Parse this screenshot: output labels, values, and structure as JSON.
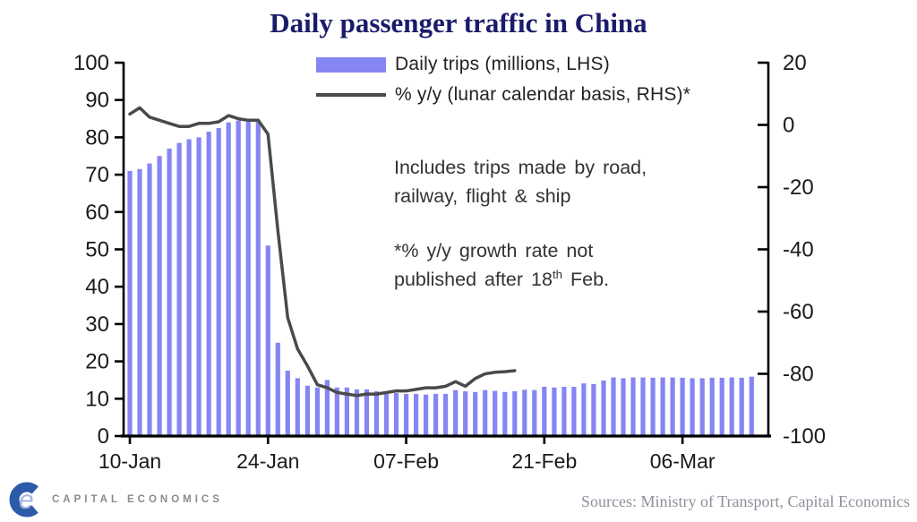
{
  "title": "Daily passenger traffic in China",
  "legend": {
    "bars_label": "Daily trips (millions, LHS)",
    "line_label": "% y/y (lunar calendar basis, RHS)*"
  },
  "annotations": {
    "note1_line1": "Includes trips made by road,",
    "note1_line2": "railway, flight & ship",
    "note2_line1": "*% y/y growth rate not",
    "note2_line2_pre": "published after 18",
    "note2_line2_sup": "th",
    "note2_line2_post": " Feb."
  },
  "footer": {
    "brand": "CAPITAL ECONOMICS",
    "sources": "Sources: Ministry of Transport, Capital Economics"
  },
  "colors": {
    "bar_fill": "#8585f3",
    "line_stroke": "#4a4a4a",
    "title_navy": "#1b1b6b",
    "axis_black": "#000000",
    "logo_blue": "#2b5aa8",
    "logo_e_blue": "#aab4e0",
    "brand_gray": "#8b8b8b",
    "sources_gray": "#8f8f9c"
  },
  "chart_data": {
    "type": "bar+line",
    "title": "Daily passenger traffic in China",
    "x_tick_labels": [
      "10-Jan",
      "24-Jan",
      "07-Feb",
      "21-Feb",
      "06-Mar"
    ],
    "x_tick_indices": [
      0,
      14,
      28,
      42,
      56
    ],
    "left_axis": {
      "label": "Daily trips (millions)",
      "min": 0,
      "max": 100,
      "ticks": [
        100,
        90,
        80,
        70,
        60,
        50,
        40,
        30,
        20,
        10,
        0
      ]
    },
    "right_axis": {
      "label": "% y/y (lunar calendar basis)",
      "min": -100,
      "max": 20,
      "ticks": [
        20,
        0,
        -20,
        -40,
        -60,
        -80,
        -100
      ]
    },
    "grid": false,
    "legend_position": "top",
    "series": [
      {
        "name": "Daily trips (millions, LHS)",
        "type": "bar",
        "axis": "left",
        "color": "#8585f3",
        "n_points": 64,
        "values": [
          71,
          71.5,
          73,
          75,
          77,
          78.5,
          79.5,
          80,
          81.5,
          82.5,
          84,
          84.5,
          85,
          84.5,
          51,
          25,
          17.5,
          15.5,
          13.5,
          13,
          15,
          13,
          13,
          12.5,
          12.5,
          12,
          11.5,
          11.5,
          11.3,
          11.3,
          11.1,
          11.3,
          11.3,
          12.3,
          12,
          11.8,
          12.3,
          12.1,
          11.8,
          12,
          12.4,
          12.3,
          13.2,
          13,
          13.2,
          13.2,
          14.1,
          13.9,
          14.9,
          15.7,
          15.5,
          15.7,
          15.7,
          15.6,
          15.7,
          15.7,
          15.6,
          15.5,
          15.5,
          15.6,
          15.6,
          15.7,
          15.6,
          15.9
        ]
      },
      {
        "name": "% y/y (lunar calendar basis, RHS)*",
        "type": "line",
        "axis": "right",
        "color": "#4a4a4a",
        "n_points": 40,
        "values": [
          3.5,
          5.5,
          2.5,
          1.5,
          0.5,
          -0.5,
          -0.5,
          0.5,
          0.5,
          1,
          3,
          2,
          1.5,
          1.5,
          -3,
          -34,
          -62,
          -72,
          -77.5,
          -83.5,
          -84.5,
          -86,
          -86.5,
          -87,
          -86.5,
          -86.5,
          -86,
          -85.5,
          -85.5,
          -85,
          -84.5,
          -84.5,
          -84,
          -82.5,
          -84,
          -81.5,
          -80,
          -79.5,
          -79.3,
          -79
        ]
      }
    ]
  }
}
